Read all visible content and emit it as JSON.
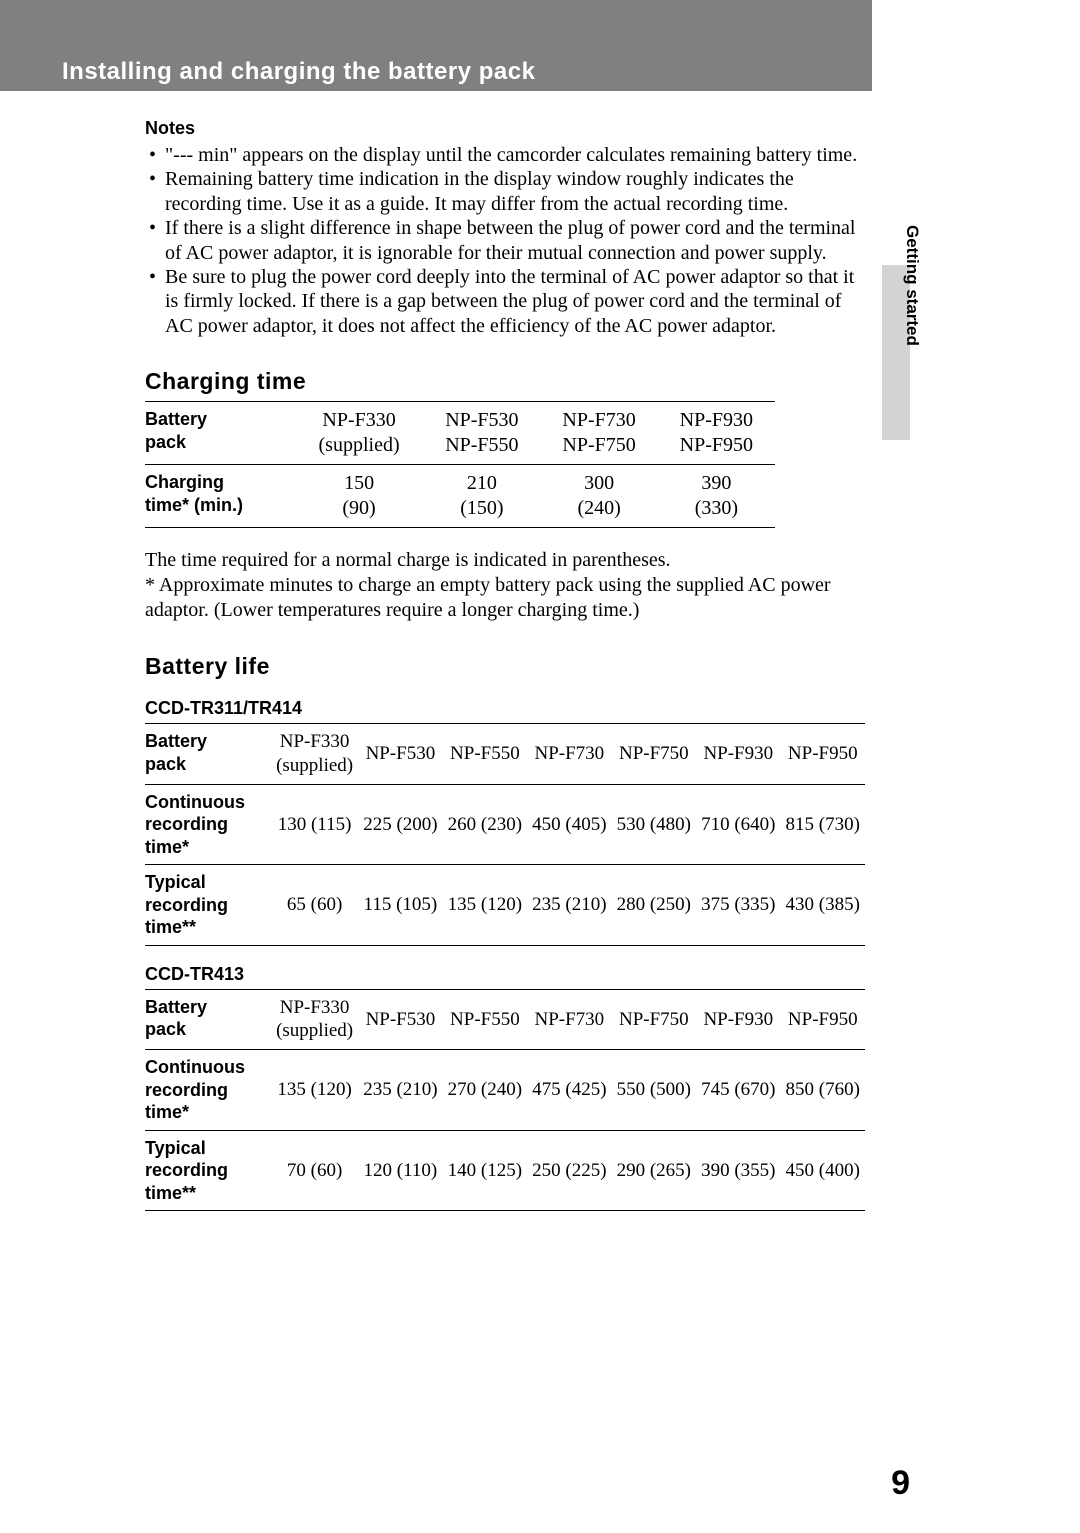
{
  "header": {
    "title": "Installing and charging the battery pack"
  },
  "sideTab": {
    "label": "Getting started"
  },
  "notes": {
    "heading": "Notes",
    "items": [
      "\"--- min\" appears on the display until the camcorder calculates remaining battery time.",
      "Remaining battery time indication in the display window roughly indicates the recording time. Use it as a guide. It may differ from the actual recording time.",
      "If there is a slight difference in shape between the plug of power cord and the terminal of AC power adaptor, it is ignorable for their mutual connection and power supply.",
      "Be sure to plug the power cord deeply into the terminal of AC power adaptor so that it is firmly locked. If there is a gap between the plug of power cord and the terminal of AC power adaptor, it does not affect the efficiency of the AC power adaptor."
    ]
  },
  "charging": {
    "heading": "Charging time",
    "rowhead_battery_l1": "Battery",
    "rowhead_battery_l2": "pack",
    "rowhead_time_l1": "Charging",
    "rowhead_time_l2": "time* (min.)",
    "cols": [
      {
        "l1": "NP-F330",
        "l2": "(supplied)"
      },
      {
        "l1": "NP-F530",
        "l2": "NP-F550"
      },
      {
        "l1": "NP-F730",
        "l2": "NP-F750"
      },
      {
        "l1": "NP-F930",
        "l2": "NP-F950"
      }
    ],
    "times": [
      {
        "l1": "150",
        "l2": "(90)"
      },
      {
        "l1": "210",
        "l2": "(150)"
      },
      {
        "l1": "300",
        "l2": "(240)"
      },
      {
        "l1": "390",
        "l2": "(330)"
      }
    ],
    "para1": "The time required for a normal charge is indicated in parentheses.",
    "para2": "* Approximate minutes to charge an empty battery pack using the supplied AC power adaptor. (Lower temperatures require a longer charging time.)"
  },
  "batteryLife": {
    "heading": "Battery life",
    "rowhead_battery_l1": "Battery",
    "rowhead_battery_l2": "pack",
    "rowhead_cont_l1": "Continuous",
    "rowhead_cont_l2": "recording",
    "rowhead_cont_l3": "time*",
    "rowhead_typ_l1": "Typical",
    "rowhead_typ_l2": "recording",
    "rowhead_typ_l3": "time**",
    "tables": [
      {
        "model": "CCD-TR311/TR414",
        "head": [
          {
            "l1": "NP-F330",
            "l2": "(supplied)"
          },
          {
            "l1": "NP-F530",
            "l2": ""
          },
          {
            "l1": "NP-F550",
            "l2": ""
          },
          {
            "l1": "NP-F730",
            "l2": ""
          },
          {
            "l1": "NP-F750",
            "l2": ""
          },
          {
            "l1": "NP-F930",
            "l2": ""
          },
          {
            "l1": "NP-F950",
            "l2": ""
          }
        ],
        "continuous": [
          "130 (115)",
          "225 (200)",
          "260 (230)",
          "450 (405)",
          "530 (480)",
          "710 (640)",
          "815 (730)"
        ],
        "typical": [
          "65 (60)",
          "115 (105)",
          "135 (120)",
          "235 (210)",
          "280 (250)",
          "375 (335)",
          "430 (385)"
        ]
      },
      {
        "model": "CCD-TR413",
        "head": [
          {
            "l1": "NP-F330",
            "l2": "(supplied)"
          },
          {
            "l1": "NP-F530",
            "l2": ""
          },
          {
            "l1": "NP-F550",
            "l2": ""
          },
          {
            "l1": "NP-F730",
            "l2": ""
          },
          {
            "l1": "NP-F750",
            "l2": ""
          },
          {
            "l1": "NP-F930",
            "l2": ""
          },
          {
            "l1": "NP-F950",
            "l2": ""
          }
        ],
        "continuous": [
          "135 (120)",
          "235 (210)",
          "270 (240)",
          "475 (425)",
          "550 (500)",
          "745 (670)",
          "850 (760)"
        ],
        "typical": [
          "70 (60)",
          "120 (110)",
          "140 (125)",
          "250 (225)",
          "290 (265)",
          "390 (355)",
          "450 (400)"
        ]
      }
    ]
  },
  "pageNumber": "9"
}
